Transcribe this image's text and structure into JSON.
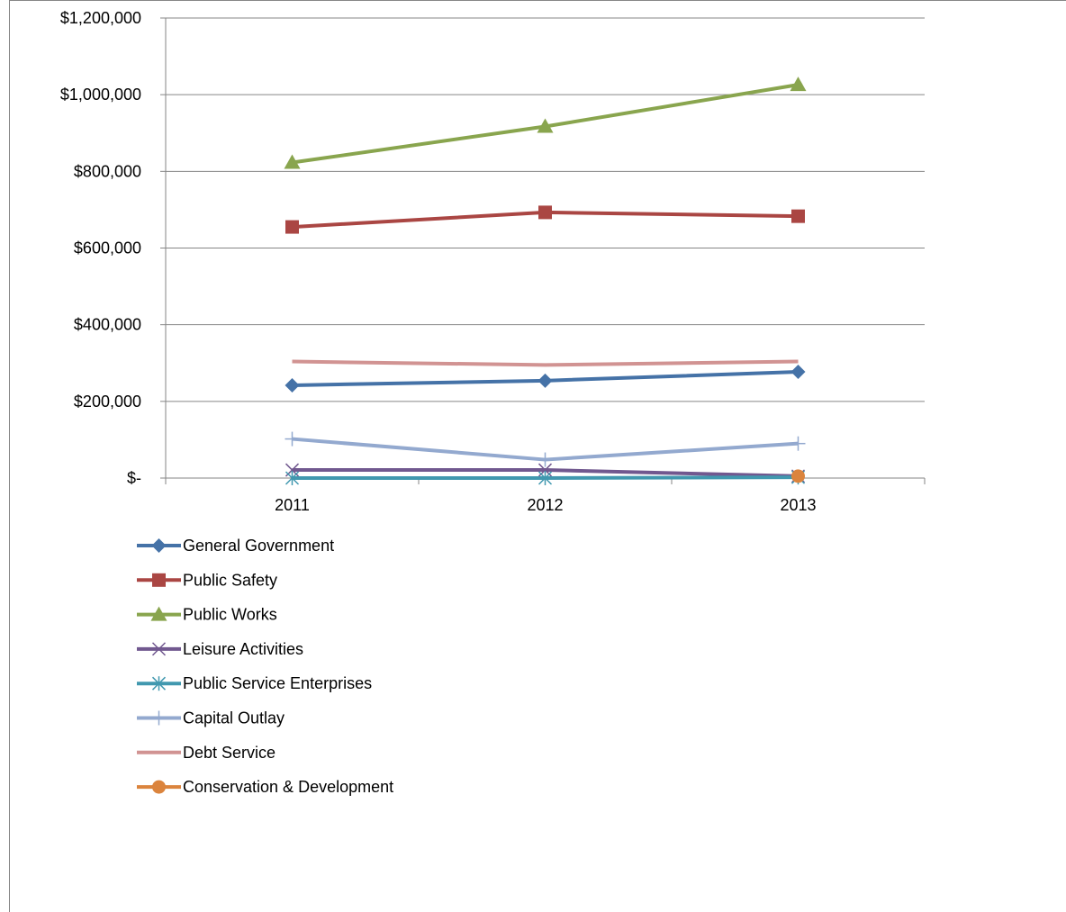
{
  "chart_data": {
    "type": "line",
    "title": "",
    "xlabel": "",
    "ylabel": "",
    "categories": [
      "2011",
      "2012",
      "2013"
    ],
    "ylim": [
      0,
      1200000
    ],
    "y_ticks": [
      0,
      200000,
      400000,
      600000,
      800000,
      1000000,
      1200000
    ],
    "y_tick_labels": [
      "$-",
      "$200,000",
      "$400,000",
      "$600,000",
      "$800,000",
      "$1,000,000",
      "$1,200,000"
    ],
    "grid": true,
    "legend_position": "bottom-left",
    "series": [
      {
        "name": "General Government",
        "values": [
          242000,
          254000,
          277000
        ],
        "color": "#4572A7",
        "marker": "diamond"
      },
      {
        "name": "Public Safety",
        "values": [
          655000,
          693000,
          683000
        ],
        "color": "#AA4643",
        "marker": "square"
      },
      {
        "name": "Public Works",
        "values": [
          823000,
          917000,
          1026000
        ],
        "color": "#89A54E",
        "marker": "triangle"
      },
      {
        "name": "Leisure Activities",
        "values": [
          21000,
          21000,
          5000
        ],
        "color": "#71588F",
        "marker": "x"
      },
      {
        "name": "Public Service Enterprises",
        "values": [
          0,
          0,
          2000
        ],
        "color": "#4198AF",
        "marker": "star"
      },
      {
        "name": "Capital Outlay",
        "values": [
          102000,
          48000,
          90000
        ],
        "color": "#93A9CF",
        "marker": "plus"
      },
      {
        "name": "Debt Service",
        "values": [
          304000,
          295000,
          304000
        ],
        "color": "#D19392",
        "marker": "none"
      },
      {
        "name": "Conservation & Development",
        "values": [
          null,
          null,
          5000
        ],
        "color": "#DB843D",
        "marker": "circle"
      }
    ]
  }
}
